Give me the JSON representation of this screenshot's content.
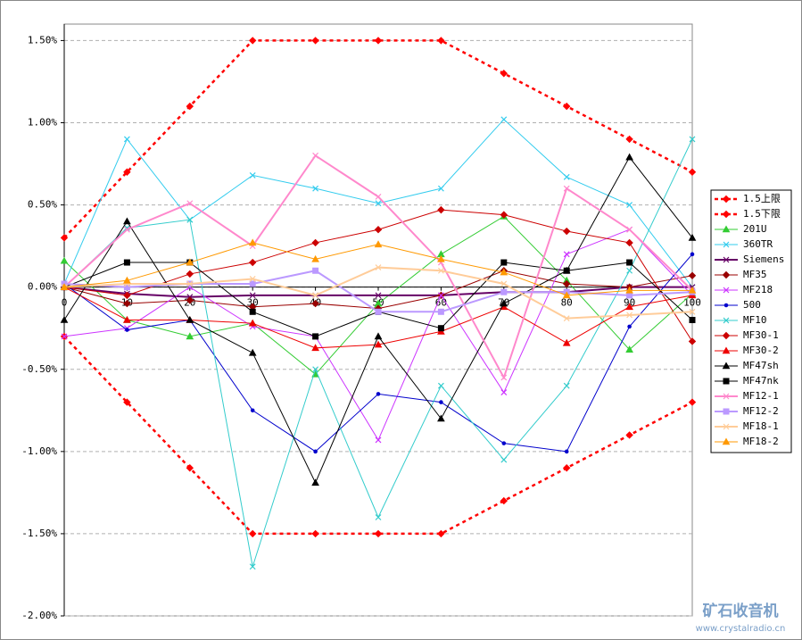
{
  "chart_data": {
    "type": "line",
    "x": [
      0,
      10,
      20,
      30,
      40,
      50,
      60,
      70,
      80,
      90,
      100
    ],
    "xlim": [
      0,
      100
    ],
    "xticks": [
      0,
      10,
      20,
      30,
      40,
      50,
      60,
      70,
      80,
      90,
      100
    ],
    "ylim": [
      -2.0,
      1.6
    ],
    "yticks": [
      {
        "value": -2.0,
        "label": "-2.00%"
      },
      {
        "value": -1.5,
        "label": "-1.50%"
      },
      {
        "value": -1.0,
        "label": "-1.00%"
      },
      {
        "value": -0.5,
        "label": "-0.50%"
      },
      {
        "value": 0,
        "label": "0.00%"
      },
      {
        "value": 0.5,
        "label": "0.50%"
      },
      {
        "value": 1.0,
        "label": "1.00%"
      },
      {
        "value": 1.5,
        "label": "1.50%"
      }
    ],
    "grid": true,
    "legend": "right",
    "series": [
      {
        "name": "1.5上限",
        "color": "#ff0000",
        "marker": "diamond",
        "dashed": true,
        "values": [
          0.3,
          0.7,
          1.1,
          1.5,
          1.5,
          1.5,
          1.5,
          1.3,
          1.1,
          0.9,
          0.7
        ]
      },
      {
        "name": "1.5下限",
        "color": "#ff0000",
        "marker": "diamond",
        "dashed": true,
        "values": [
          -0.3,
          -0.7,
          -1.1,
          -1.5,
          -1.5,
          -1.5,
          -1.5,
          -1.3,
          -1.1,
          -0.9,
          -0.7
        ]
      },
      {
        "name": "201U",
        "color": "#33cc33",
        "marker": "triangle",
        "values": [
          0.16,
          -0.2,
          -0.3,
          -0.22,
          -0.53,
          -0.1,
          0.2,
          0.43,
          0.04,
          -0.38,
          -0.04
        ]
      },
      {
        "name": "360TR",
        "color": "#33ccee",
        "marker": "x",
        "values": [
          0.02,
          0.9,
          0.41,
          0.68,
          0.6,
          0.51,
          0.6,
          1.02,
          0.67,
          0.5,
          0.0
        ]
      },
      {
        "name": "Siemens",
        "color": "#660066",
        "marker": "x",
        "thick": true,
        "values": [
          0,
          -0.04,
          -0.06,
          -0.05,
          -0.05,
          -0.05,
          -0.05,
          -0.03,
          -0.03,
          0,
          0
        ]
      },
      {
        "name": "MF35",
        "color": "#990000",
        "marker": "diamond",
        "values": [
          0,
          -0.1,
          -0.08,
          -0.12,
          -0.1,
          -0.13,
          -0.05,
          0.1,
          0.02,
          0,
          0.07
        ]
      },
      {
        "name": "MF218",
        "color": "#cc33ff",
        "marker": "x",
        "values": [
          -0.3,
          -0.25,
          0,
          -0.24,
          -0.3,
          -0.93,
          -0.05,
          -0.64,
          0.2,
          0.35,
          -0.05
        ]
      },
      {
        "name": "500",
        "color": "#0000cc",
        "marker": "circle",
        "values": [
          0.02,
          -0.26,
          -0.2,
          -0.75,
          -1.0,
          -0.65,
          -0.7,
          -0.95,
          -1.0,
          -0.24,
          0.2
        ]
      },
      {
        "name": "MF10",
        "color": "#33cccc",
        "marker": "x",
        "values": [
          0,
          0.36,
          0.41,
          -1.7,
          -0.5,
          -1.4,
          -0.6,
          -1.05,
          -0.6,
          0.1,
          0.9
        ]
      },
      {
        "name": "MF30-1",
        "color": "#cc0000",
        "marker": "diamond",
        "values": [
          0,
          -0.05,
          0.08,
          0.15,
          0.27,
          0.35,
          0.47,
          0.44,
          0.34,
          0.27,
          -0.33
        ]
      },
      {
        "name": "MF30-2",
        "color": "#ee0000",
        "marker": "triangle",
        "values": [
          0,
          -0.2,
          -0.2,
          -0.22,
          -0.37,
          -0.35,
          -0.27,
          -0.12,
          -0.34,
          -0.12,
          -0.05
        ]
      },
      {
        "name": "MF47sh",
        "color": "#000000",
        "marker": "triangle",
        "values": [
          -0.2,
          0.4,
          -0.2,
          -0.4,
          -1.19,
          -0.3,
          -0.8,
          -0.1,
          0.1,
          0.79,
          0.3
        ]
      },
      {
        "name": "MF47nk",
        "color": "#000000",
        "marker": "square",
        "values": [
          0,
          0.15,
          0.15,
          -0.15,
          -0.3,
          -0.15,
          -0.25,
          0.15,
          0.1,
          0.15,
          -0.2
        ]
      },
      {
        "name": "MF12-1",
        "color": "#ff88cc",
        "marker": "x",
        "thick": true,
        "values": [
          0,
          0.35,
          0.51,
          0.25,
          0.8,
          0.55,
          0.15,
          -0.55,
          0.6,
          0.35,
          -0.02
        ]
      },
      {
        "name": "MF12-2",
        "color": "#bb99ff",
        "marker": "square",
        "thick": true,
        "values": [
          0.02,
          0,
          0.02,
          0.02,
          0.1,
          -0.15,
          -0.15,
          -0.03,
          -0.03,
          -0.05,
          -0.03
        ]
      },
      {
        "name": "MF18-1",
        "color": "#ffcc99",
        "marker": "x",
        "thick": true,
        "values": [
          0,
          0.02,
          0.02,
          0.05,
          -0.05,
          0.12,
          0.1,
          0.02,
          -0.19,
          -0.17,
          -0.15
        ]
      },
      {
        "name": "MF18-2",
        "color": "#ff9900",
        "marker": "triangle",
        "values": [
          0,
          0.04,
          0.15,
          0.27,
          0.17,
          0.26,
          0.17,
          0.09,
          -0.05,
          -0.02,
          -0.02
        ]
      }
    ]
  },
  "watermark": {
    "title": "矿石收音机",
    "url": "www.crystalradio.cn"
  }
}
